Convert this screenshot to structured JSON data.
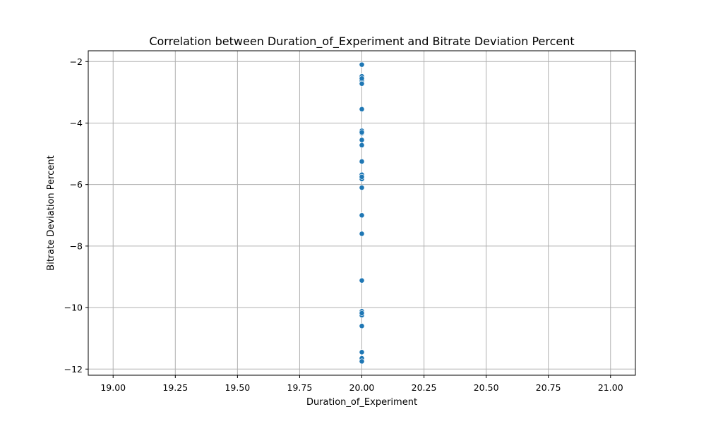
{
  "chart_data": {
    "type": "scatter",
    "title": "Correlation between Duration_of_Experiment and Bitrate Deviation Percent",
    "xlabel": "Duration_of_Experiment",
    "ylabel": "Bitrate Deviation Percent",
    "xlim": [
      18.9,
      21.1
    ],
    "ylim": [
      -12.2,
      -1.65
    ],
    "xticks": [
      19.0,
      19.25,
      19.5,
      19.75,
      20.0,
      20.25,
      20.5,
      20.75,
      21.0
    ],
    "xtick_labels": [
      "19.00",
      "19.25",
      "19.50",
      "19.75",
      "20.00",
      "20.25",
      "20.50",
      "20.75",
      "21.00"
    ],
    "yticks": [
      -12,
      -10,
      -8,
      -6,
      -4,
      -2
    ],
    "ytick_labels": [
      "−12",
      "−10",
      "−8",
      "−6",
      "−4",
      "−2"
    ],
    "grid": true,
    "marker_color": "#1f77b4",
    "x": [
      20,
      20,
      20,
      20,
      20,
      20,
      20,
      20,
      20,
      20,
      20,
      20,
      20,
      20,
      20,
      20,
      20,
      20,
      20,
      20,
      20,
      20,
      20,
      20,
      20,
      20
    ],
    "y": [
      -2.1,
      -2.48,
      -2.62,
      -2.72,
      -3.55,
      -4.25,
      -4.33,
      -4.55,
      -4.72,
      -5.25,
      -5.68,
      -5.82,
      -6.1,
      -7.0,
      -7.6,
      -9.12,
      -10.12,
      -10.25,
      -10.6,
      -11.45,
      -11.65,
      -11.75,
      -4.3,
      -2.55,
      -5.75,
      -10.18
    ]
  }
}
